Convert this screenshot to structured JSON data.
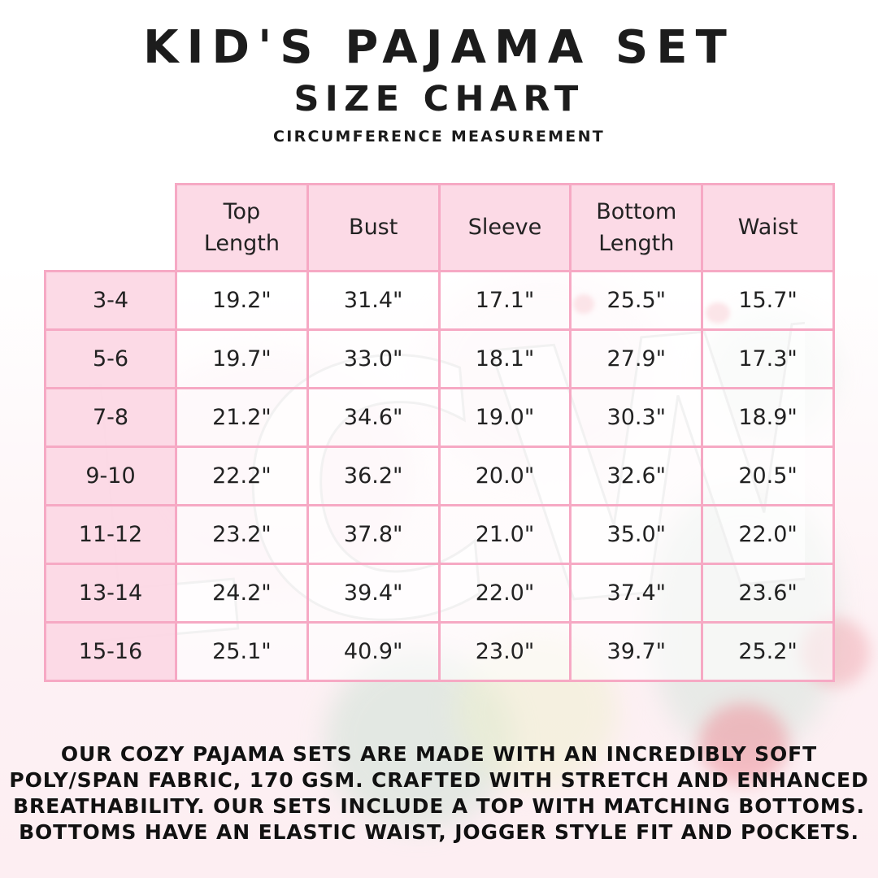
{
  "header": {
    "title": "KID'S PAJAMA SET",
    "subtitle": "SIZE CHART",
    "note": "CIRCUMFERENCE MEASUREMENT"
  },
  "watermark": {
    "text": "LCW"
  },
  "table": {
    "columns": [
      "Top Length",
      "Bust",
      "Sleeve",
      "Bottom Length",
      "Waist"
    ],
    "rows": [
      {
        "size": "3-4",
        "values": [
          "19.2\"",
          "31.4\"",
          "17.1\"",
          "25.5\"",
          "15.7\""
        ]
      },
      {
        "size": "5-6",
        "values": [
          "19.7\"",
          "33.0\"",
          "18.1\"",
          "27.9\"",
          "17.3\""
        ]
      },
      {
        "size": "7-8",
        "values": [
          "21.2\"",
          "34.6\"",
          "19.0\"",
          "30.3\"",
          "18.9\""
        ]
      },
      {
        "size": "9-10",
        "values": [
          "22.2\"",
          "36.2\"",
          "20.0\"",
          "32.6\"",
          "20.5\""
        ]
      },
      {
        "size": "11-12",
        "values": [
          "23.2\"",
          "37.8\"",
          "21.0\"",
          "35.0\"",
          "22.0\""
        ]
      },
      {
        "size": "13-14",
        "values": [
          "24.2\"",
          "39.4\"",
          "22.0\"",
          "37.4\"",
          "23.6\""
        ]
      },
      {
        "size": "15-16",
        "values": [
          "25.1\"",
          "40.9\"",
          "23.0\"",
          "39.7\"",
          "25.2\""
        ]
      }
    ]
  },
  "footer": {
    "lines": [
      "OUR COZY PAJAMA SETS ARE MADE WITH AN INCREDIBLY SOFT",
      "POLY/SPAN FABRIC, 170 GSM. CRAFTED WITH STRETCH AND ENHANCED",
      "BREATHABILITY. OUR SETS INCLUDE A TOP WITH MATCHING BOTTOMS.",
      "BOTTOMS HAVE AN ELASTIC WAIST, JOGGER STYLE FIT AND POCKETS."
    ]
  },
  "colors": {
    "table_border": "#f6a9c4",
    "cell_fill": "#fcd8e5",
    "text": "#1c1c1c"
  }
}
